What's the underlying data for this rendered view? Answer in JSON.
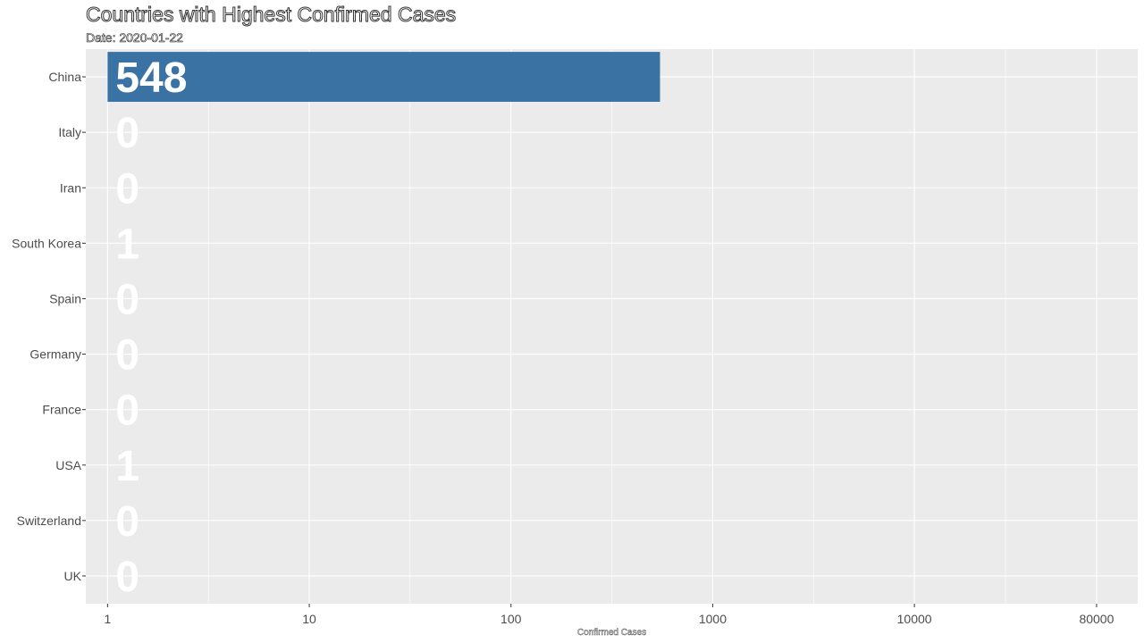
{
  "chart_data": {
    "type": "bar",
    "orientation": "horizontal",
    "title": "Countries with Highest Confirmed Cases",
    "subtitle": "Date: 2020-01-22",
    "xlabel": "Confirmed Cases",
    "ylabel": "",
    "x_scale": "log10",
    "xlim": [
      0.78,
      128000
    ],
    "x_ticks": [
      1,
      10,
      100,
      1000,
      10000,
      80000
    ],
    "x_tick_labels": [
      "1",
      "10",
      "100",
      "1000",
      "10000",
      "80000"
    ],
    "categories": [
      "China",
      "Italy",
      "Iran",
      "South Korea",
      "Spain",
      "Germany",
      "France",
      "USA",
      "Switzerland",
      "UK"
    ],
    "values": [
      548,
      0,
      0,
      1,
      0,
      0,
      0,
      1,
      0,
      0
    ],
    "value_labels": [
      "548",
      "0",
      "0",
      "1",
      "0",
      "0",
      "0",
      "1",
      "0",
      "0"
    ],
    "legend": "none",
    "grid": true,
    "colors": {
      "panel_background": "#ebebeb",
      "grid": "#ffffff",
      "bar": "#3a73a3",
      "value_label": "#ffffff",
      "tick_label": "#4d4d4d"
    }
  }
}
